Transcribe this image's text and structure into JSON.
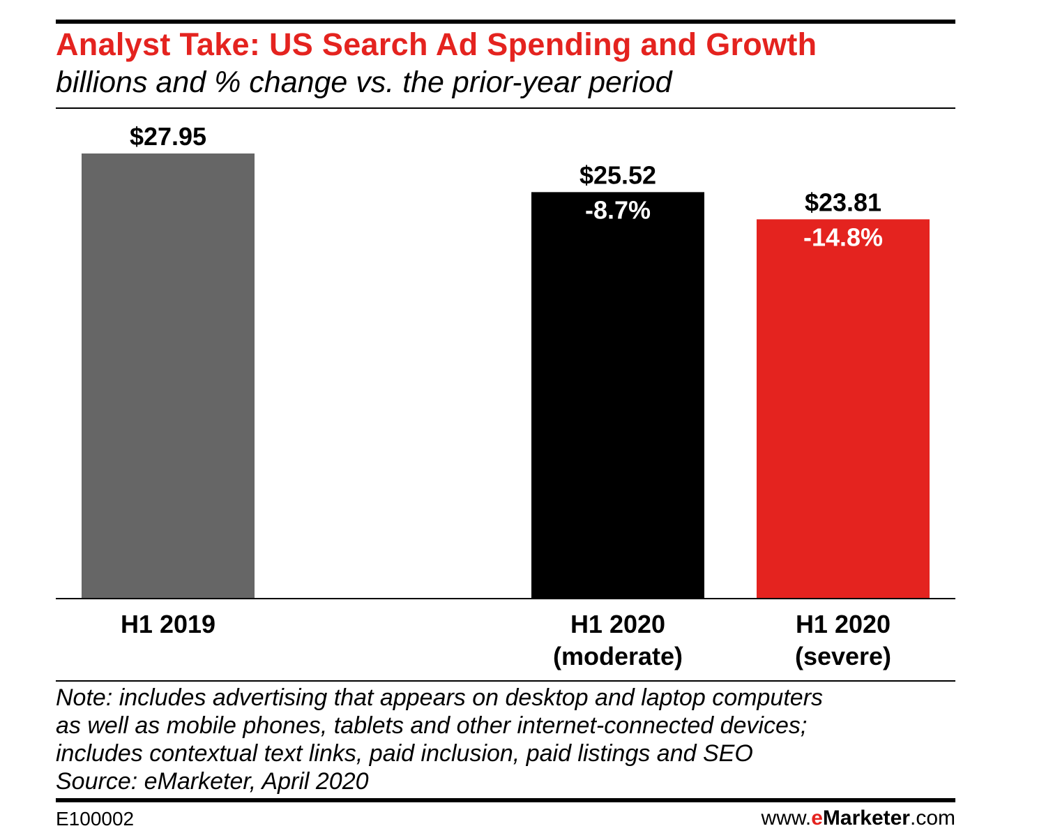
{
  "header": {
    "title": "Analyst Take: US Search Ad Spending and Growth",
    "subtitle": "billions and % change vs. the prior-year period"
  },
  "chart_data": {
    "type": "bar",
    "categories": [
      [
        "H1 2019"
      ],
      [
        "H1 2020",
        "(moderate)"
      ],
      [
        "H1 2020",
        "(severe)"
      ]
    ],
    "values": [
      27.95,
      25.52,
      23.81
    ],
    "value_labels": [
      "$27.95",
      "$25.52",
      "$23.81"
    ],
    "change_labels": [
      "",
      "-8.7%",
      "-14.8%"
    ],
    "colors": [
      "#666666",
      "#000000",
      "#e4231f"
    ],
    "ylim": [
      0,
      27.95
    ],
    "grid": false,
    "legend": "none"
  },
  "notes": [
    "Note: includes advertising that appears on desktop and laptop computers",
    "as well as mobile phones, tablets and other internet-connected devices;",
    "includes contextual text links, paid inclusion, paid listings and SEO",
    "Source: eMarketer, April 2020"
  ],
  "footer": {
    "id": "E100002",
    "url_prefix": "www.",
    "url_brand_e": "e",
    "url_brand_rest": "Marketer",
    "url_suffix": ".com"
  }
}
